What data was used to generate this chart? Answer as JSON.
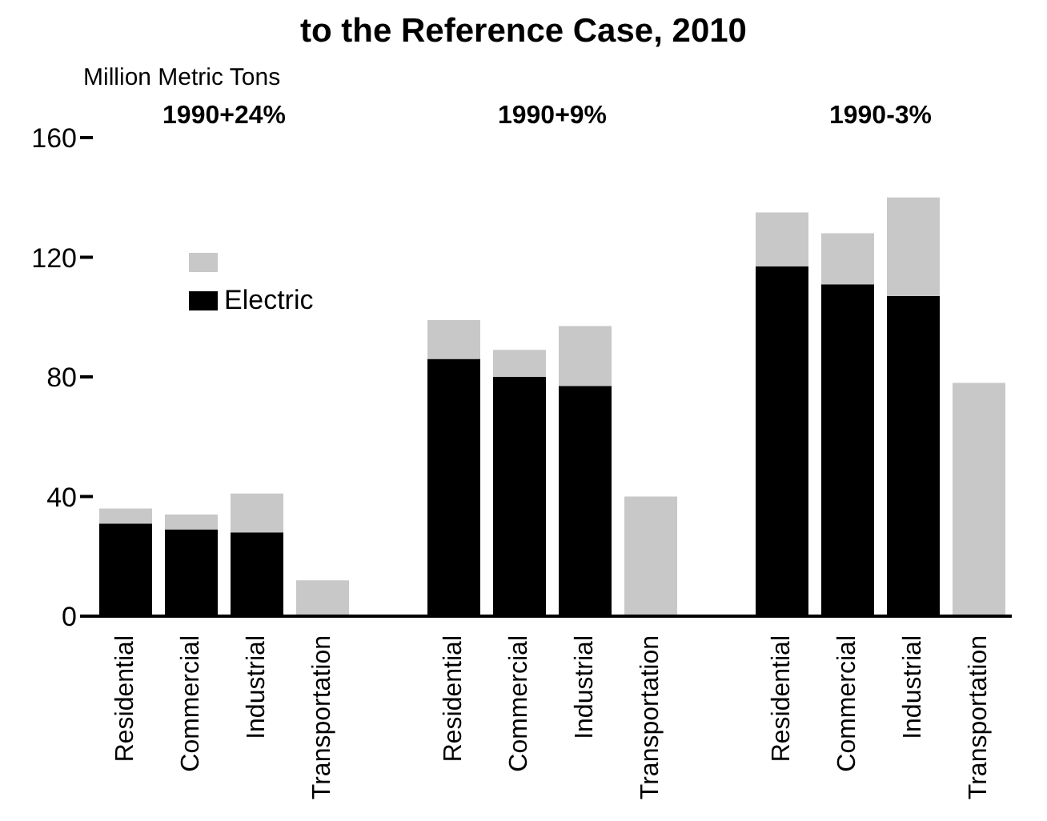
{
  "chart_data": {
    "type": "bar",
    "title": "to the Reference Case, 2010",
    "ylabel": "Million Metric Tons",
    "categories": [
      "Residential",
      "Commercial",
      "Industrial",
      "Transportation",
      null,
      "Residential",
      "Commercial",
      "Industrial",
      "Transportation",
      null,
      "Residential",
      "Commercial",
      "Industrial",
      "Transportation"
    ],
    "series": [
      {
        "name": "Electric",
        "color": "#000000",
        "values": [
          31,
          29,
          28,
          0,
          null,
          86,
          80,
          77,
          0,
          null,
          117,
          111,
          107,
          0
        ]
      },
      {
        "color": "#c8c8c8",
        "values": [
          5,
          5,
          13,
          12,
          null,
          13,
          9,
          20,
          40,
          null,
          18,
          17,
          33,
          78
        ]
      }
    ],
    "stacked": true,
    "ylim": [
      0,
      160
    ],
    "yticks": [
      0,
      40,
      80,
      120,
      160
    ],
    "grid": false,
    "legend": "top left",
    "annotations": [
      "1990+24%",
      "1990+9%",
      "1990-3%"
    ]
  }
}
